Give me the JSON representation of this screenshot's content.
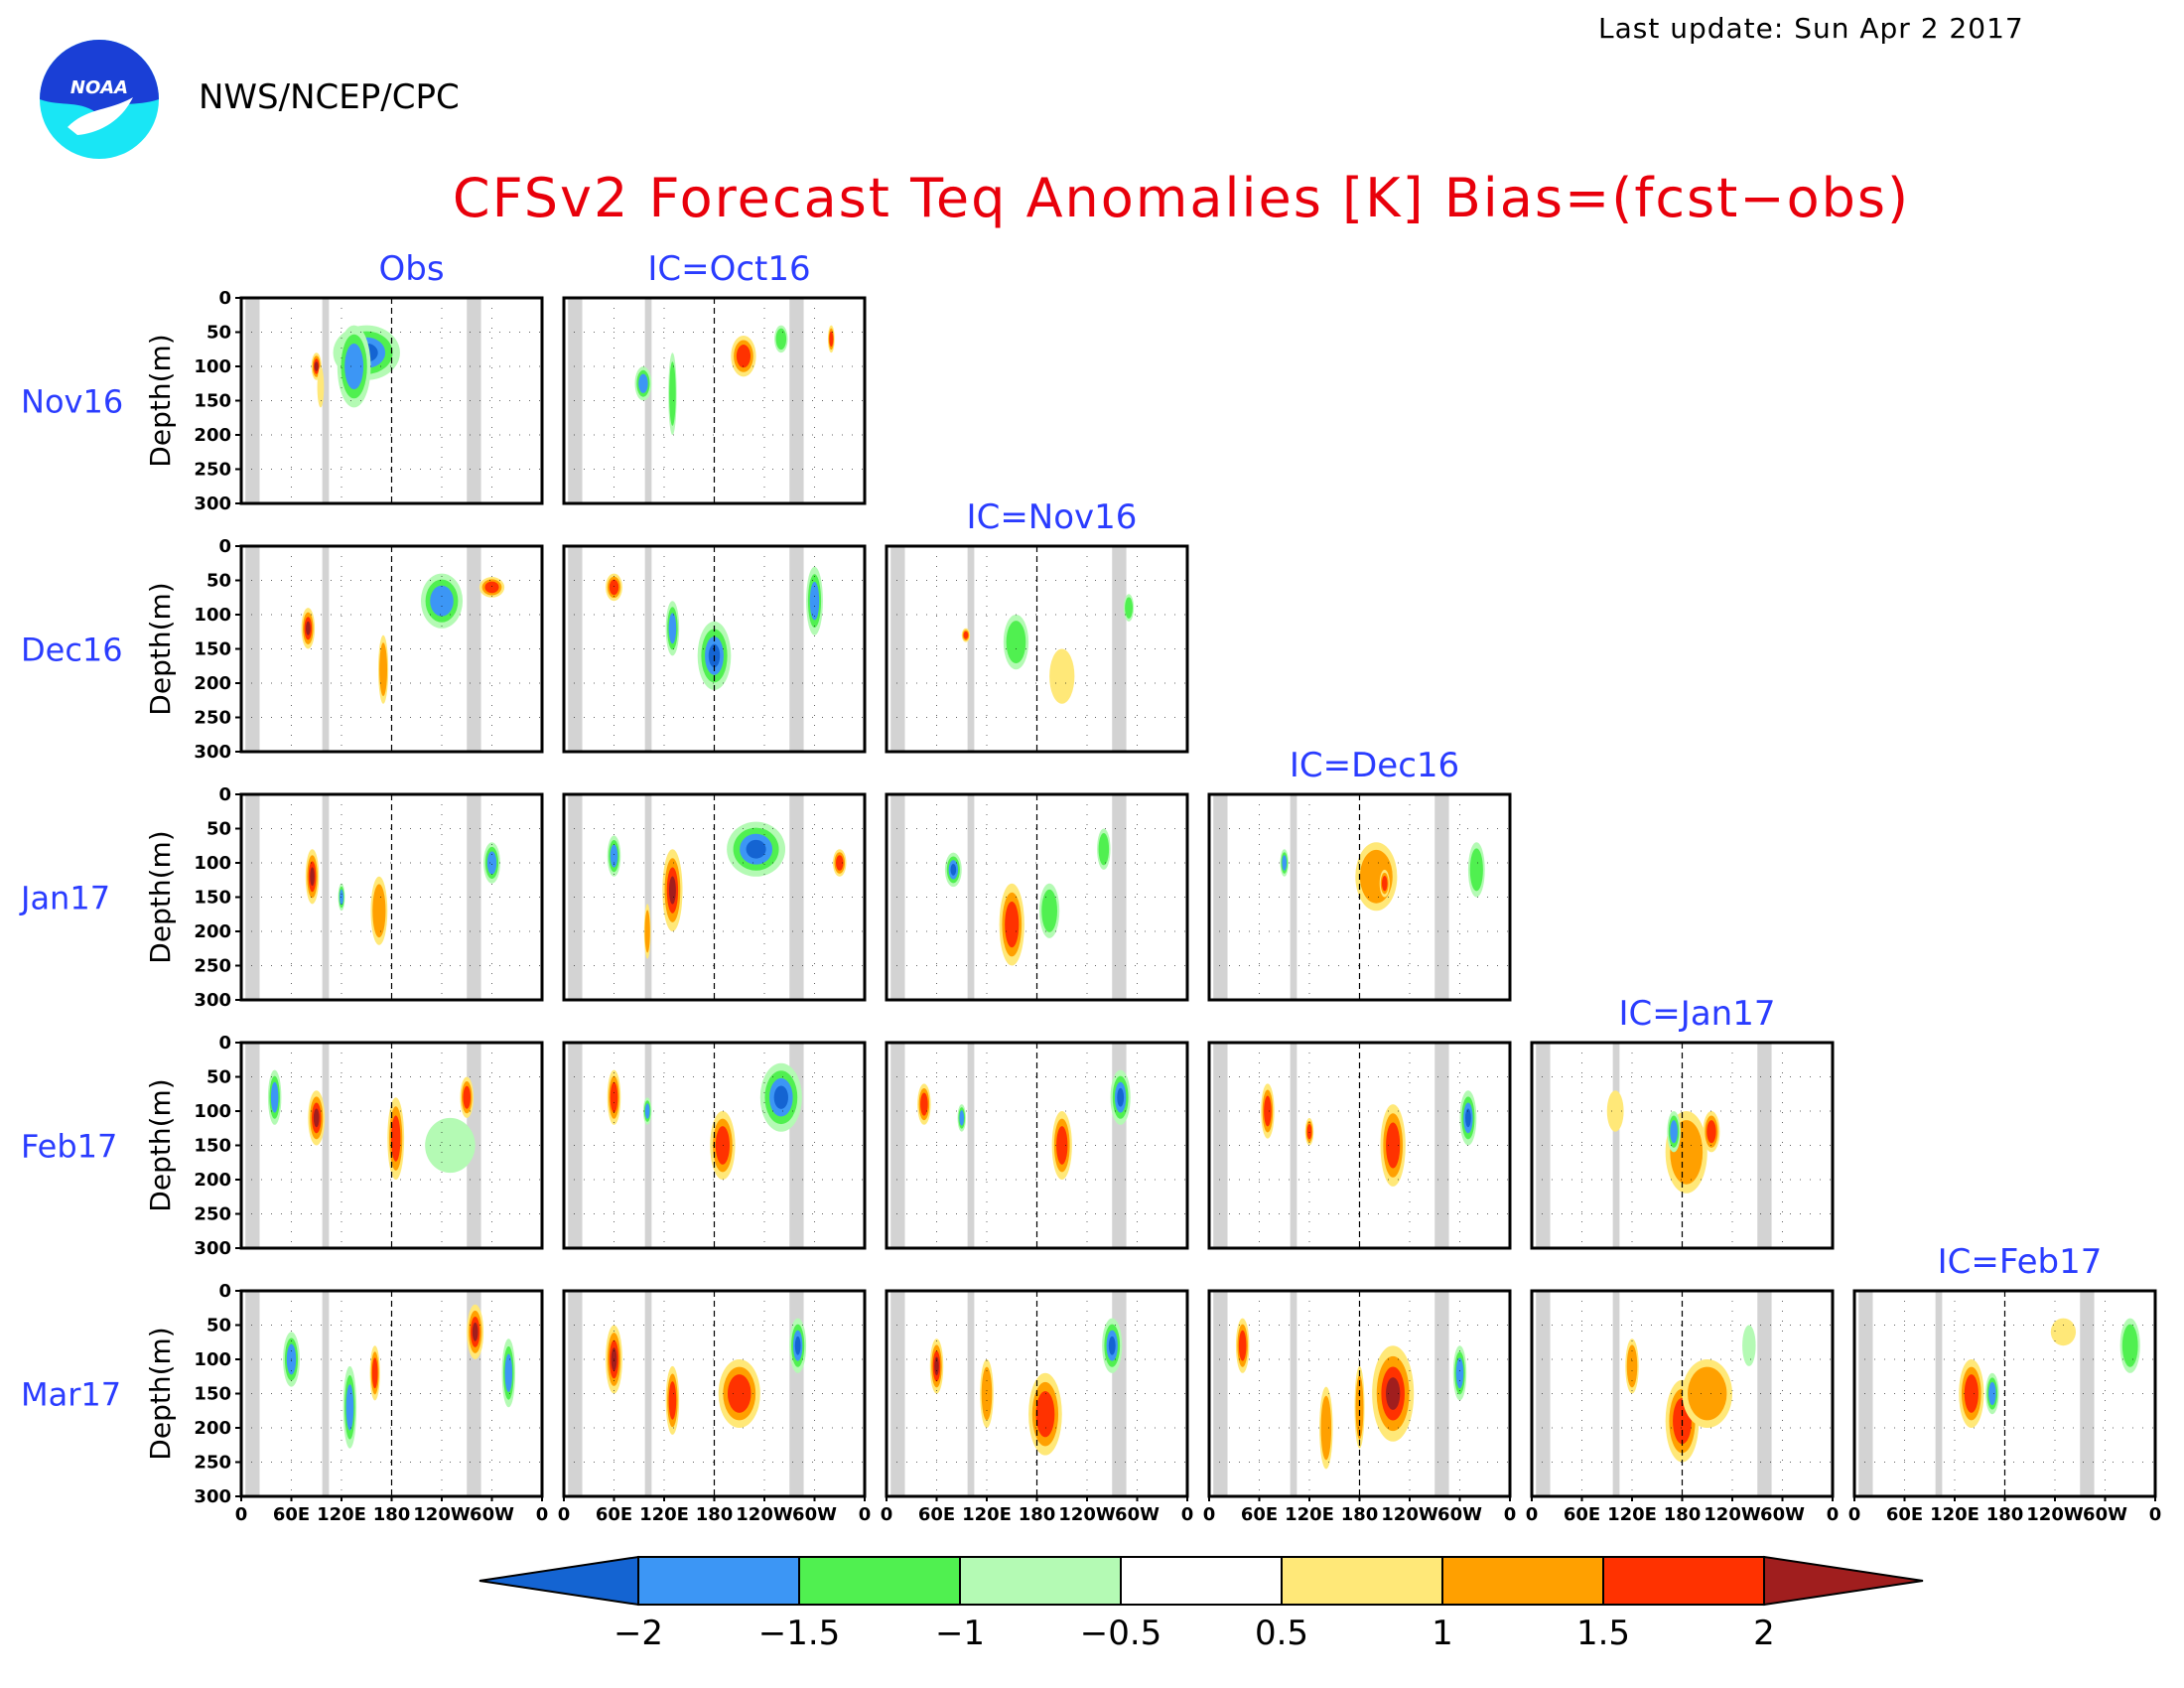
{
  "header": {
    "agency": "NWS/NCEP/CPC",
    "last_update": "Last update: Sun Apr 2 2017",
    "title": "CFSv2 Forecast Teq Anomalies [K] Bias=(fcst−obs)"
  },
  "colors": {
    "title": "#e8000b",
    "labels": "#2a3cff",
    "land_mask": "#d3d3d3",
    "noaa_blue": "#1a3fd6",
    "noaa_cyan": "#19e6f5"
  },
  "chart_data": {
    "type": "heatmap",
    "title": "CFSv2 Forecast Teq Anomalies [K] Bias=(fcst−obs)",
    "ylabel": "Depth(m)",
    "ylim": [
      300,
      0
    ],
    "xlim": [
      0,
      360
    ],
    "y_ticks": [
      "0",
      "50",
      "100",
      "150",
      "200",
      "250",
      "300"
    ],
    "x_ticks": [
      "0",
      "60E",
      "120E",
      "180",
      "120W",
      "60W",
      "0"
    ],
    "columns": [
      "Obs",
      "IC=Oct16",
      "IC=Nov16",
      "IC=Dec16",
      "IC=Jan17",
      "IC=Feb17"
    ],
    "rows": [
      "Nov16",
      "Dec16",
      "Jan17",
      "Feb17",
      "Mar17"
    ],
    "colorbar": {
      "levels": [
        "−2",
        "−1.5",
        "−1",
        "−0.5",
        "0.5",
        "1",
        "1.5",
        "2"
      ],
      "colors": [
        "#1464d2",
        "#3c96f5",
        "#50f050",
        "#b4fab4",
        "#ffffff",
        "#ffe878",
        "#ffa000",
        "#ff3200",
        "#a01e1e"
      ]
    },
    "land_longitudes": [
      [
        5,
        22
      ],
      [
        97,
        105
      ],
      [
        270,
        287
      ]
    ],
    "panels": [
      {
        "row": 0,
        "col": 0,
        "blobs": [
          [
            150,
            80,
            40,
            40,
            -2
          ],
          [
            135,
            100,
            20,
            60,
            -1.5
          ],
          [
            90,
            100,
            6,
            20,
            2
          ],
          [
            95,
            130,
            4,
            30,
            0.5
          ]
        ]
      },
      {
        "row": 0,
        "col": 1,
        "blobs": [
          [
            215,
            85,
            15,
            30,
            1.5
          ],
          [
            95,
            125,
            10,
            25,
            -1.5
          ],
          [
            130,
            140,
            5,
            60,
            -1
          ],
          [
            260,
            60,
            8,
            20,
            -1
          ],
          [
            320,
            60,
            4,
            20,
            1.5
          ]
        ]
      },
      {
        "row": 1,
        "col": 0,
        "blobs": [
          [
            240,
            80,
            25,
            40,
            -1.5
          ],
          [
            80,
            120,
            8,
            30,
            2
          ],
          [
            170,
            180,
            6,
            50,
            1
          ],
          [
            300,
            60,
            15,
            15,
            1.5
          ]
        ]
      },
      {
        "row": 1,
        "col": 1,
        "blobs": [
          [
            180,
            160,
            20,
            50,
            -2
          ],
          [
            60,
            60,
            10,
            20,
            1.5
          ],
          [
            130,
            120,
            8,
            40,
            -1.5
          ],
          [
            300,
            80,
            10,
            50,
            -1.5
          ]
        ]
      },
      {
        "row": 1,
        "col": 2,
        "blobs": [
          [
            155,
            140,
            15,
            40,
            -1
          ],
          [
            210,
            190,
            15,
            40,
            0.5
          ],
          [
            290,
            90,
            6,
            20,
            -1
          ],
          [
            95,
            130,
            5,
            10,
            1.5
          ]
        ]
      },
      {
        "row": 2,
        "col": 0,
        "blobs": [
          [
            85,
            120,
            8,
            40,
            2
          ],
          [
            165,
            170,
            10,
            50,
            1
          ],
          [
            300,
            100,
            10,
            30,
            -1.5
          ],
          [
            120,
            150,
            4,
            20,
            -1.5
          ]
        ]
      },
      {
        "row": 2,
        "col": 1,
        "blobs": [
          [
            230,
            80,
            35,
            40,
            -2
          ],
          [
            130,
            140,
            12,
            60,
            2
          ],
          [
            60,
            90,
            8,
            30,
            -1.5
          ],
          [
            330,
            100,
            8,
            20,
            1.5
          ],
          [
            100,
            200,
            4,
            40,
            1
          ]
        ]
      },
      {
        "row": 2,
        "col": 2,
        "blobs": [
          [
            150,
            190,
            15,
            60,
            1.5
          ],
          [
            80,
            110,
            10,
            25,
            -2
          ],
          [
            260,
            80,
            8,
            30,
            -1
          ],
          [
            195,
            170,
            12,
            40,
            -1
          ]
        ]
      },
      {
        "row": 2,
        "col": 3,
        "blobs": [
          [
            200,
            120,
            25,
            50,
            1
          ],
          [
            210,
            130,
            6,
            20,
            1.5
          ],
          [
            90,
            100,
            5,
            20,
            -1.5
          ],
          [
            320,
            110,
            10,
            40,
            -1
          ]
        ]
      },
      {
        "row": 3,
        "col": 0,
        "blobs": [
          [
            90,
            110,
            10,
            40,
            2
          ],
          [
            185,
            140,
            10,
            60,
            1.5
          ],
          [
            40,
            80,
            8,
            40,
            -1.5
          ],
          [
            270,
            80,
            8,
            30,
            1.5
          ],
          [
            250,
            150,
            30,
            40,
            -0.5
          ]
        ]
      },
      {
        "row": 3,
        "col": 1,
        "blobs": [
          [
            260,
            80,
            25,
            50,
            -2
          ],
          [
            190,
            150,
            15,
            50,
            1.5
          ],
          [
            60,
            80,
            8,
            40,
            1.5
          ],
          [
            100,
            100,
            5,
            20,
            -1.5
          ]
        ]
      },
      {
        "row": 3,
        "col": 2,
        "blobs": [
          [
            210,
            150,
            12,
            50,
            1.5
          ],
          [
            280,
            80,
            12,
            40,
            -2
          ],
          [
            45,
            90,
            8,
            30,
            1.5
          ],
          [
            90,
            110,
            5,
            20,
            -1.5
          ]
        ]
      },
      {
        "row": 3,
        "col": 3,
        "blobs": [
          [
            220,
            150,
            15,
            60,
            1.5
          ],
          [
            310,
            110,
            10,
            40,
            -2
          ],
          [
            70,
            100,
            8,
            40,
            1.5
          ],
          [
            120,
            130,
            5,
            20,
            1.5
          ]
        ]
      },
      {
        "row": 3,
        "col": 4,
        "blobs": [
          [
            185,
            160,
            25,
            60,
            1
          ],
          [
            215,
            130,
            10,
            30,
            1.5
          ],
          [
            170,
            130,
            8,
            30,
            -1.5
          ],
          [
            100,
            100,
            10,
            30,
            0.5
          ]
        ]
      },
      {
        "row": 4,
        "col": 0,
        "blobs": [
          [
            280,
            60,
            10,
            40,
            2
          ],
          [
            130,
            170,
            8,
            60,
            -1.5
          ],
          [
            60,
            100,
            10,
            40,
            -1.5
          ],
          [
            320,
            120,
            8,
            50,
            -1.5
          ],
          [
            160,
            120,
            6,
            40,
            1.5
          ]
        ]
      },
      {
        "row": 4,
        "col": 1,
        "blobs": [
          [
            210,
            150,
            25,
            50,
            1.5
          ],
          [
            60,
            100,
            10,
            50,
            2
          ],
          [
            280,
            80,
            10,
            40,
            -2
          ],
          [
            130,
            160,
            8,
            50,
            1.5
          ]
        ]
      },
      {
        "row": 4,
        "col": 2,
        "blobs": [
          [
            190,
            180,
            20,
            60,
            1.5
          ],
          [
            270,
            80,
            12,
            40,
            -2
          ],
          [
            60,
            110,
            8,
            40,
            2
          ],
          [
            120,
            150,
            8,
            50,
            1
          ]
        ]
      },
      {
        "row": 4,
        "col": 3,
        "blobs": [
          [
            220,
            150,
            25,
            70,
            2
          ],
          [
            40,
            80,
            8,
            40,
            1.5
          ],
          [
            300,
            120,
            8,
            40,
            -1.5
          ],
          [
            140,
            200,
            8,
            60,
            1
          ],
          [
            180,
            170,
            6,
            60,
            1
          ]
        ]
      },
      {
        "row": 4,
        "col": 4,
        "blobs": [
          [
            180,
            190,
            20,
            60,
            1.5
          ],
          [
            210,
            150,
            30,
            50,
            1
          ],
          [
            120,
            110,
            8,
            40,
            1
          ],
          [
            260,
            80,
            8,
            30,
            -0.5
          ]
        ]
      },
      {
        "row": 4,
        "col": 5,
        "blobs": [
          [
            140,
            150,
            15,
            50,
            1.5
          ],
          [
            165,
            150,
            8,
            30,
            -1.5
          ],
          [
            330,
            80,
            12,
            40,
            -1
          ],
          [
            250,
            60,
            15,
            20,
            0.5
          ]
        ]
      }
    ]
  }
}
